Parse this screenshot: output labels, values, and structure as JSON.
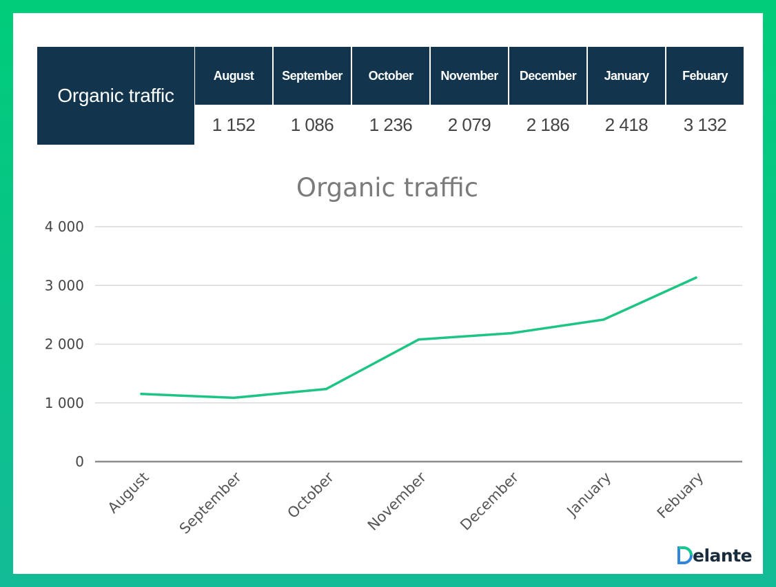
{
  "table": {
    "header": "Organic traffic",
    "months": [
      "August",
      "September",
      "October",
      "November",
      "December",
      "January",
      "Febuary"
    ],
    "values": [
      "1 152",
      "1 086",
      "1 236",
      "2 079",
      "2 186",
      "2 418",
      "3 132"
    ]
  },
  "chart_data": {
    "type": "line",
    "title": "Organic traffic",
    "xlabel": "",
    "ylabel": "",
    "categories": [
      "August",
      "September",
      "October",
      "November",
      "December",
      "January",
      "Febuary"
    ],
    "series": [
      {
        "values": [
          1152,
          1086,
          1236,
          2079,
          2186,
          2418,
          3132
        ]
      }
    ],
    "ylim": [
      0,
      4000
    ],
    "yticks": [
      0,
      1000,
      2000,
      3000,
      4000
    ],
    "ytick_labels": [
      "0",
      "1 000",
      "2 000",
      "3 000",
      "4 000"
    ],
    "grid": true,
    "legend": "none"
  },
  "colors": {
    "series": "#1dc484",
    "table_header": "#12344d",
    "border": "#00cc7a"
  },
  "logo": {
    "text": "Delante",
    "mark_colors": [
      "#16c792",
      "#2e86de"
    ]
  }
}
